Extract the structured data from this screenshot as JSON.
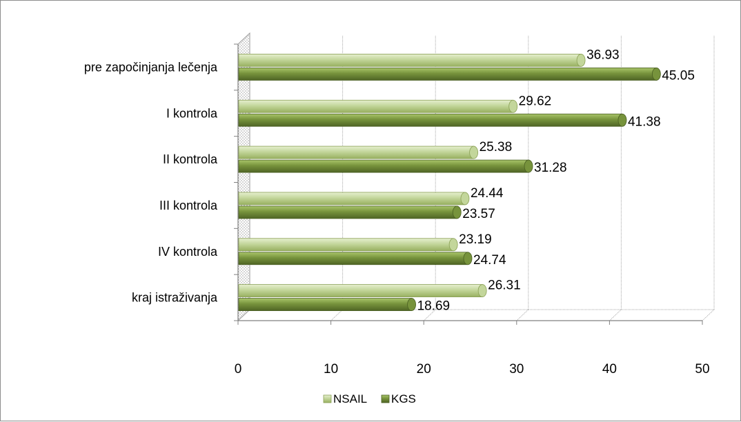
{
  "chart_data": {
    "type": "bar",
    "orientation": "horizontal",
    "style": "3d-cylinder",
    "categories": [
      "pre započinjanja lečenja",
      "I kontrola",
      "II kontrola",
      "III kontrola",
      "IV kontrola",
      "kraj istraživanja"
    ],
    "series": [
      {
        "name": "NSAIL",
        "values": [
          36.93,
          29.62,
          25.38,
          24.44,
          23.19,
          26.31
        ],
        "color": "#c3d69b"
      },
      {
        "name": "KGS",
        "values": [
          45.05,
          41.38,
          31.28,
          23.57,
          24.74,
          18.69
        ],
        "color": "#77933c"
      }
    ],
    "xlim": [
      0,
      50
    ],
    "x_ticks": [
      "0",
      "10",
      "20",
      "30",
      "40",
      "50"
    ],
    "grid": true,
    "legend_position": "bottom"
  }
}
